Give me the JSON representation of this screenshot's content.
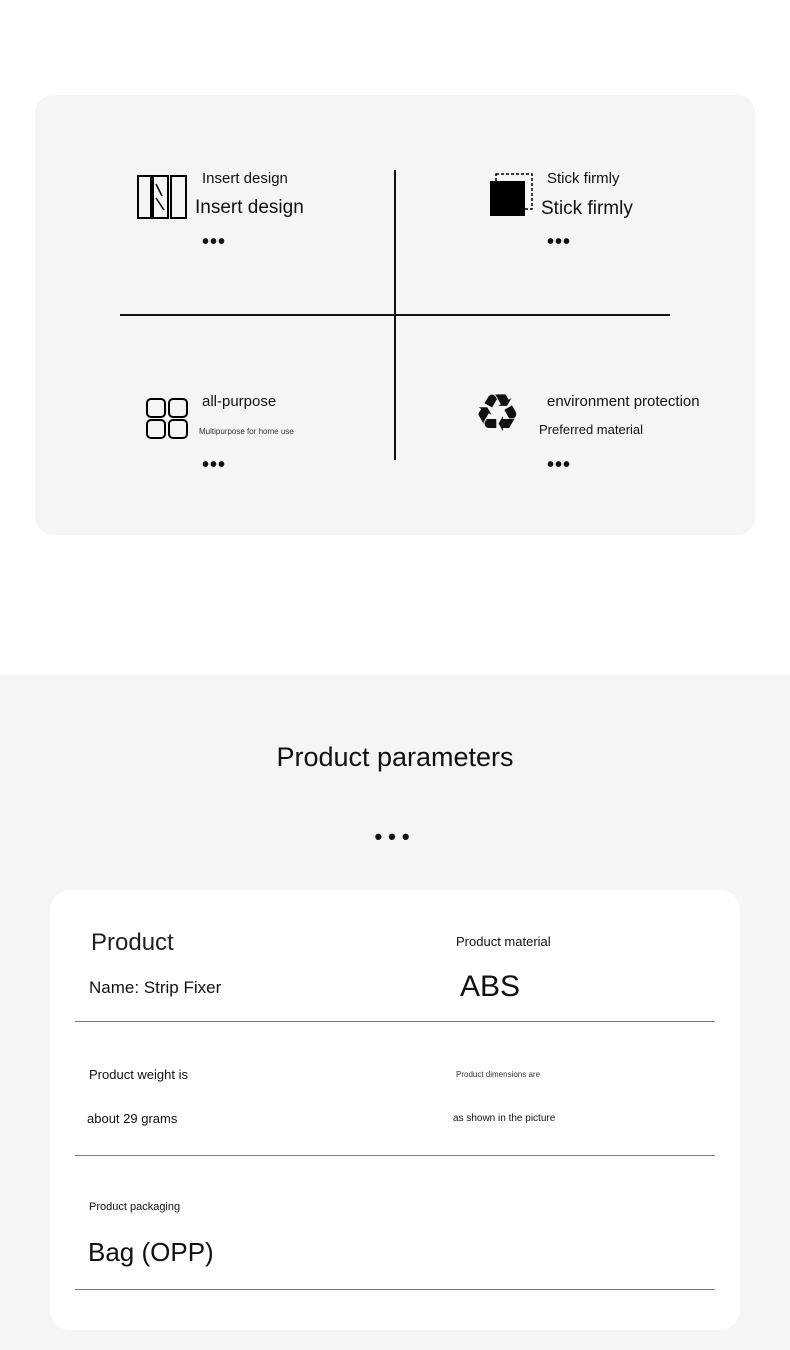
{
  "features": [
    {
      "title": "Insert design",
      "subtitle": "Insert design",
      "icon": "window-panel-icon"
    },
    {
      "title": "Stick firmly",
      "subtitle": "Stick firmly",
      "icon": "adhesive-square-icon"
    },
    {
      "title": "all-purpose",
      "subtitle": "Multipurpose for home use",
      "icon": "grid-icon"
    },
    {
      "title": "environment protection",
      "subtitle": "Preferred material",
      "icon": "recycle-icon"
    }
  ],
  "more": "•••",
  "params": {
    "title": "Product parameters",
    "dots": "•••",
    "product_label": "Product",
    "product_value": "Name: Strip Fixer",
    "material_label": "Product material",
    "material_value": "ABS",
    "weight_label": "Product weight is",
    "weight_value": "about 29 grams",
    "dimensions_label": "Product dimensions are",
    "dimensions_value": "as shown in the picture",
    "packaging_label": "Product packaging",
    "packaging_value": "Bag (OPP)"
  }
}
